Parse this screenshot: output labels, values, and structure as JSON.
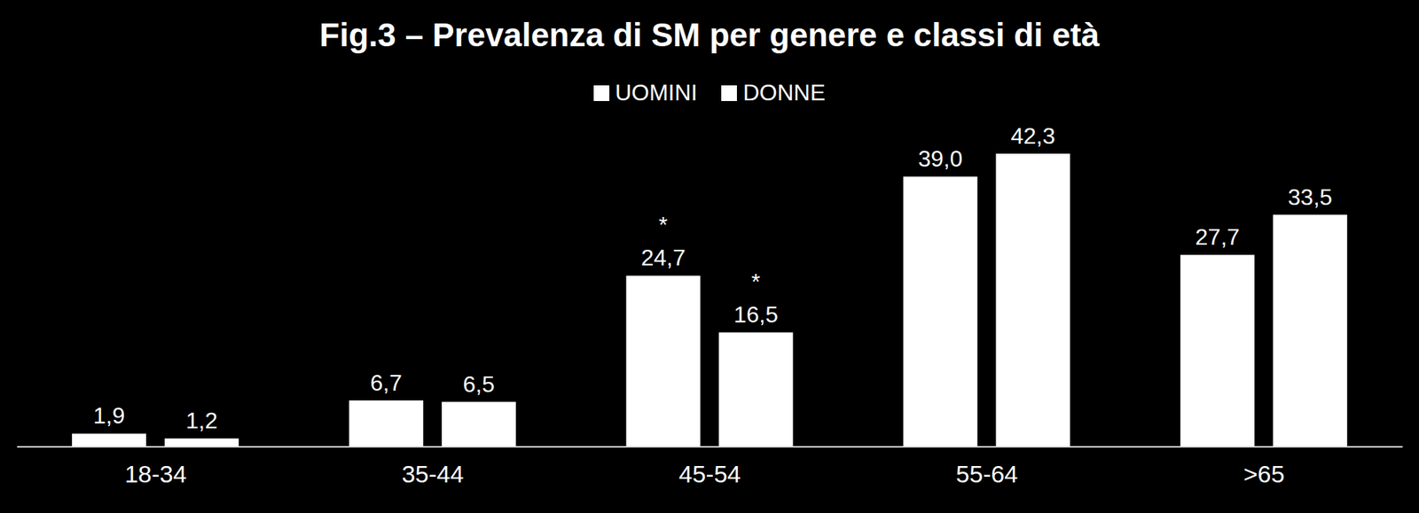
{
  "chart_data": {
    "type": "bar",
    "title": "Fig.3 – Prevalenza di SM per genere e classi di età",
    "categories": [
      "18-34",
      "35-44",
      "45-54",
      "55-64",
      ">65"
    ],
    "series": [
      {
        "name": "UOMINI",
        "color": "#ffffff",
        "values": [
          1.9,
          6.7,
          24.7,
          39.0,
          27.7
        ],
        "value_labels": [
          "1,9",
          "6,7",
          "24,7",
          "39,0",
          "27,7"
        ]
      },
      {
        "name": "DONNE",
        "color": "#ffffff",
        "values": [
          1.2,
          6.5,
          16.5,
          42.3,
          33.5
        ],
        "value_labels": [
          "1,2",
          "6,5",
          "16,5",
          "42,3",
          "33,5"
        ]
      }
    ],
    "annotations": [
      {
        "category": "45-54",
        "series": "UOMINI",
        "text": "*"
      },
      {
        "category": "45-54",
        "series": "DONNE",
        "text": "*"
      }
    ],
    "data_labels": true,
    "tick_labels": "x",
    "legend": "top"
  }
}
